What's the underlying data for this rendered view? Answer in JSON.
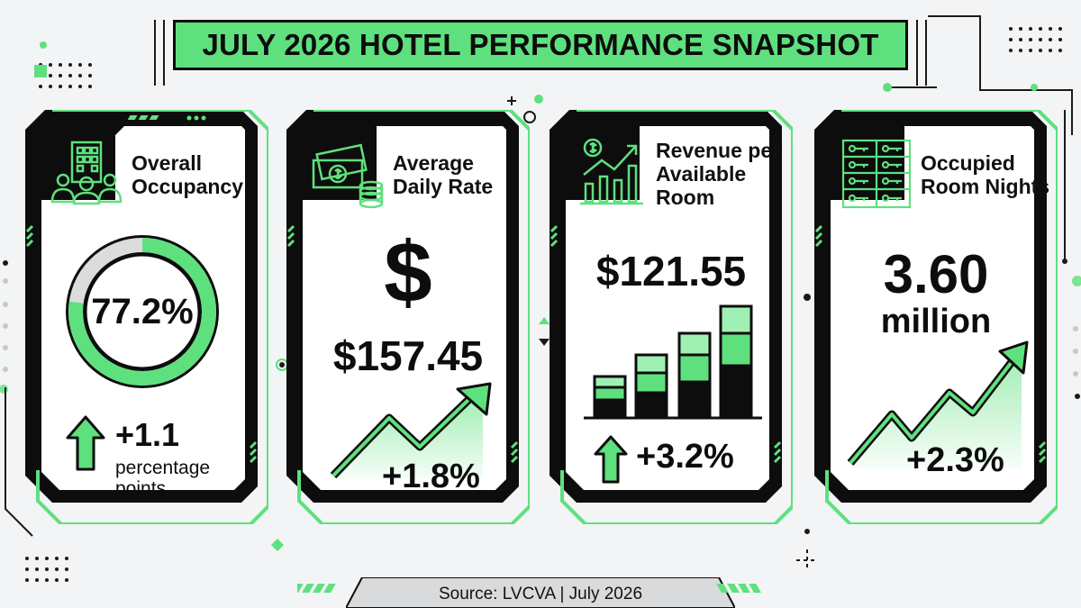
{
  "title": "JULY 2026 HOTEL PERFORMANCE SNAPSHOT",
  "cards": [
    {
      "icon": "hotel-guests-icon",
      "label_lines": [
        "Overall",
        "Occupancy"
      ],
      "value": "77.2%",
      "occupancy_fraction": 0.772,
      "change_value": "+1.1",
      "change_lines": [
        "percentage",
        "points"
      ]
    },
    {
      "icon": "money-coins-icon",
      "label_lines": [
        "Average",
        "Daily Rate"
      ],
      "value_symbol": "$",
      "value": "$157.45",
      "change_value": "+1.8%"
    },
    {
      "icon": "growth-chart-icon",
      "label_lines": [
        "Revenue per",
        "Available",
        "Room"
      ],
      "value": "$121.55",
      "change_value": "+3.2%"
    },
    {
      "icon": "room-keys-icon",
      "label_lines": [
        "Occupied",
        "Room Nights"
      ],
      "value": "3.60",
      "value_unit": "million",
      "change_value": "+2.3%"
    }
  ],
  "source": "Source: LVCVA | July 2026",
  "colors": {
    "accent": "#5fe07e",
    "dark": "#0d0d0d",
    "background": "#f3f4f6",
    "panel": "#ffffff"
  }
}
